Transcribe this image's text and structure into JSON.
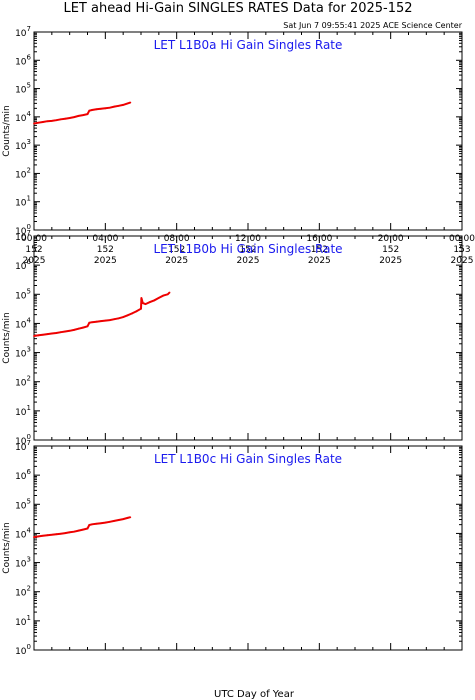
{
  "figure": {
    "title": "LET ahead Hi-Gain SINGLES RATES Data for 2025-152",
    "timestamp": "Sat Jun  7 09:55:41 2025 ACE Science Center",
    "xlabel": "UTC Day of Year",
    "series_color": "#ee0000",
    "label_color": "#1a1aee"
  },
  "chart_data": [
    {
      "type": "line",
      "title": "LET L1B0a Hi Gain Singles Rate",
      "ylabel": "Counts/min",
      "yscale": "log",
      "ylim": [
        1,
        10000000
      ],
      "xlim": [
        0,
        24
      ],
      "x_tick_labels": [
        [
          "00:00",
          "152",
          "2025"
        ],
        [
          "04:00",
          "152",
          "2025"
        ],
        [
          "08:00",
          "152",
          "2025"
        ],
        [
          "12:00",
          "152",
          "2025"
        ],
        [
          "16:00",
          "152",
          "2025"
        ],
        [
          "20:00",
          "152",
          "2025"
        ],
        [
          "00:00",
          "153",
          "2025"
        ]
      ],
      "x": [
        0,
        0.25,
        0.5,
        0.75,
        1.0,
        1.25,
        1.5,
        1.75,
        2.0,
        2.25,
        2.5,
        2.75,
        3.0,
        3.1,
        3.25,
        3.5,
        3.75,
        4.0,
        4.25,
        4.5,
        4.75,
        5.0,
        5.25,
        5.4
      ],
      "values": [
        5800,
        6200,
        6600,
        7000,
        7200,
        7600,
        8200,
        8600,
        9100,
        9800,
        10800,
        11500,
        12500,
        16500,
        17500,
        18500,
        19200,
        20000,
        21000,
        23000,
        24500,
        26500,
        30000,
        32000
      ]
    },
    {
      "type": "line",
      "title": "LET L1B0b Hi Gain Singles Rate",
      "ylabel": "Counts/min",
      "yscale": "log",
      "ylim": [
        1,
        10000000
      ],
      "xlim": [
        0,
        24
      ],
      "x_tick_labels": [],
      "x": [
        0,
        0.25,
        0.5,
        0.75,
        1.0,
        1.25,
        1.5,
        1.75,
        2.0,
        2.25,
        2.5,
        2.75,
        3.0,
        3.1,
        3.25,
        3.5,
        3.75,
        4.0,
        4.25,
        4.5,
        4.75,
        5.0,
        5.25,
        5.5,
        5.75,
        6.0,
        6.02,
        6.1,
        6.25,
        6.5,
        6.75,
        7.0,
        7.25,
        7.5,
        7.6
      ],
      "values": [
        3700,
        3900,
        4100,
        4300,
        4500,
        4700,
        5000,
        5300,
        5600,
        6000,
        6600,
        7200,
        8000,
        10500,
        11000,
        11500,
        12000,
        12500,
        13000,
        14000,
        15000,
        16500,
        19000,
        22000,
        26000,
        32000,
        75000,
        50000,
        46000,
        54000,
        62000,
        75000,
        90000,
        100000,
        115000
      ]
    },
    {
      "type": "line",
      "title": "LET L1B0c Hi Gain Singles Rate",
      "ylabel": "Counts/min",
      "yscale": "log",
      "ylim": [
        1,
        10000000
      ],
      "xlim": [
        0,
        24
      ],
      "x_tick_labels": [],
      "x": [
        0,
        0.25,
        0.5,
        0.75,
        1.0,
        1.25,
        1.5,
        1.75,
        2.0,
        2.25,
        2.5,
        2.75,
        3.0,
        3.1,
        3.25,
        3.5,
        3.75,
        4.0,
        4.25,
        4.5,
        4.75,
        5.0,
        5.25,
        5.4
      ],
      "values": [
        7500,
        7900,
        8300,
        8700,
        9000,
        9400,
        9800,
        10300,
        10900,
        11500,
        12500,
        13500,
        14800,
        19500,
        20500,
        21500,
        22500,
        23500,
        25000,
        27000,
        29000,
        31000,
        34000,
        36000
      ]
    }
  ]
}
